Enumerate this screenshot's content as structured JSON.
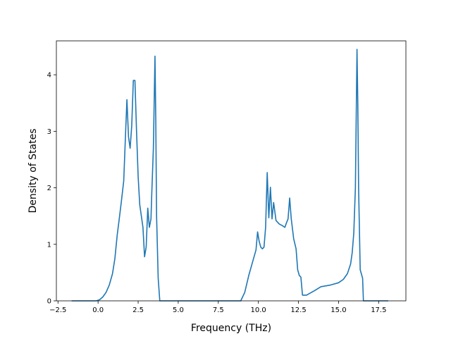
{
  "chart_data": {
    "type": "line",
    "title": "",
    "xlabel": "Frequency (THz)",
    "ylabel": "Density of States",
    "xlim": [
      -2.6,
      19.2
    ],
    "ylim": [
      0,
      4.6
    ],
    "x_ticks": [
      -2.5,
      0.0,
      2.5,
      5.0,
      7.5,
      10.0,
      12.5,
      15.0,
      17.5
    ],
    "x_tick_labels": [
      "−2.5",
      "0.0",
      "2.5",
      "5.0",
      "7.5",
      "10.0",
      "12.5",
      "15.0",
      "17.5"
    ],
    "y_ticks": [
      0,
      1,
      2,
      3,
      4
    ],
    "y_tick_labels": [
      "0",
      "1",
      "2",
      "3",
      "4"
    ],
    "grid": false,
    "line_color": "#1f77b4",
    "series": [
      {
        "x": [
          -1.65,
          -0.1,
          0.1,
          0.3,
          0.5,
          0.7,
          0.9,
          1.05,
          1.2,
          1.3,
          1.45,
          1.6,
          1.7,
          1.8,
          1.9,
          2.0,
          2.1,
          2.2,
          2.3,
          2.4,
          2.5,
          2.6,
          2.7,
          2.8,
          2.9,
          3.0,
          3.1,
          3.2,
          3.3,
          3.35,
          3.45,
          3.55,
          3.6,
          3.65,
          3.75,
          3.85,
          8.9,
          9.15,
          9.4,
          9.7,
          9.85,
          9.95,
          10.05,
          10.15,
          10.25,
          10.35,
          10.45,
          10.55,
          10.65,
          10.75,
          10.85,
          10.95,
          11.1,
          11.3,
          11.5,
          11.65,
          11.75,
          11.85,
          11.95,
          12.05,
          12.2,
          12.35,
          12.45,
          12.55,
          12.65,
          12.75,
          13.0,
          13.5,
          13.9,
          14.5,
          15.0,
          15.3,
          15.55,
          15.75,
          15.85,
          15.95,
          16.05,
          16.15,
          16.2,
          16.25,
          16.35,
          16.5,
          16.55,
          17.5,
          18.1
        ],
        "y": [
          0,
          0,
          0.02,
          0.07,
          0.15,
          0.28,
          0.48,
          0.75,
          1.18,
          1.4,
          1.75,
          2.12,
          2.85,
          3.56,
          2.9,
          2.7,
          3.1,
          3.9,
          3.9,
          3.0,
          2.2,
          1.7,
          1.5,
          1.3,
          0.78,
          0.95,
          1.64,
          1.3,
          1.45,
          1.9,
          2.7,
          4.33,
          3.2,
          1.5,
          0.4,
          0,
          0,
          0.15,
          0.45,
          0.75,
          0.9,
          1.22,
          1.05,
          0.95,
          0.92,
          0.95,
          1.3,
          2.27,
          1.47,
          2.01,
          1.45,
          1.74,
          1.42,
          1.36,
          1.33,
          1.3,
          1.38,
          1.45,
          1.82,
          1.45,
          1.1,
          0.92,
          0.55,
          0.45,
          0.42,
          0.1,
          0.1,
          0.18,
          0.25,
          0.28,
          0.32,
          0.38,
          0.48,
          0.65,
          0.85,
          1.2,
          2.0,
          4.45,
          3.5,
          2.0,
          0.55,
          0.4,
          0,
          0,
          0
        ]
      }
    ]
  }
}
